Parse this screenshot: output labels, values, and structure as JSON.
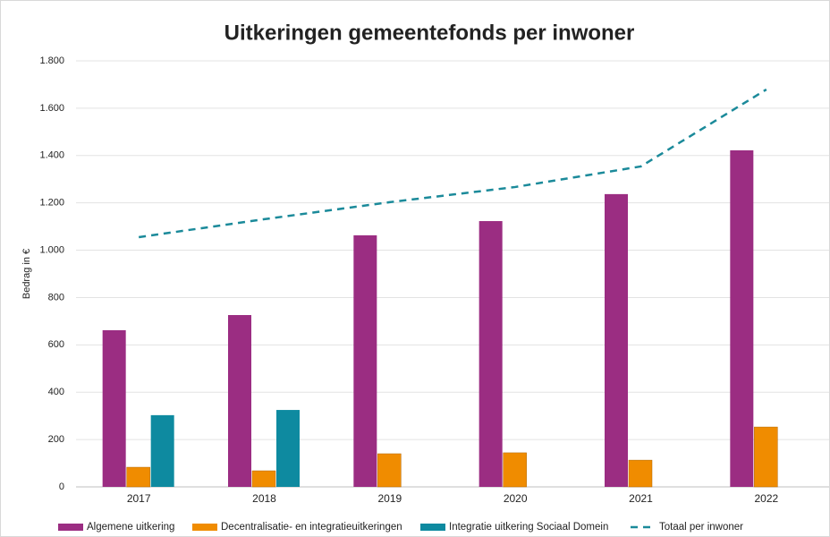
{
  "chart_data": {
    "type": "bar",
    "title": "Uitkeringen gemeentefonds per inwoner",
    "y_label": "Bedrag in €",
    "categories": [
      "2017",
      "2018",
      "2019",
      "2020",
      "2021",
      "2022"
    ],
    "series": [
      {
        "name": "Algemene uitkering",
        "color": "#9b2d82",
        "values": [
          662,
          726,
          1063,
          1123,
          1237,
          1422
        ]
      },
      {
        "name": "Decentralisatie- en integratieuitkeringen",
        "color": "#f08c00",
        "values": [
          83,
          68,
          140,
          144,
          113,
          253
        ]
      },
      {
        "name": "Integratie uitkering Sociaal Domein",
        "color": "#0e8aa0",
        "values": [
          303,
          325,
          null,
          null,
          null,
          null
        ]
      },
      {
        "name": "Totaal per inwoner",
        "color": "#1b8a9a",
        "type": "line",
        "dashed": true,
        "values": [
          1055,
          1131,
          1203,
          1267,
          1354,
          1679
        ]
      }
    ],
    "ylim": [
      0,
      1800
    ],
    "yticks": [
      0,
      200,
      400,
      600,
      800,
      {
        "value": 1000,
        "label": "1.000"
      },
      {
        "value": 1200,
        "label": "1.200"
      },
      {
        "value": 1400,
        "label": "1.400"
      },
      {
        "value": 1600,
        "label": "1.600"
      },
      {
        "value": 1800,
        "label": "1.800"
      }
    ],
    "grid": true,
    "legend": "bottom"
  }
}
